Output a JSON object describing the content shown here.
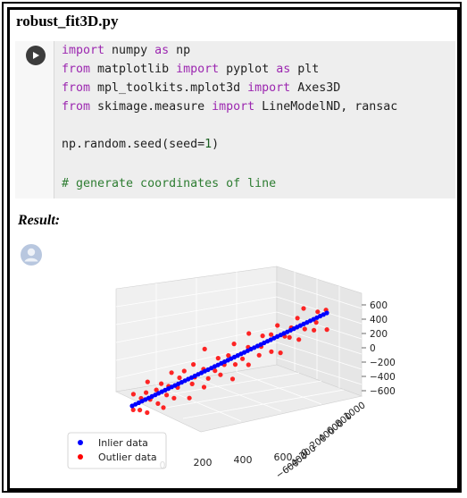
{
  "file_title": "robust_fit3D.py",
  "code": {
    "line1": {
      "kw1": "import",
      "mid": " numpy ",
      "kw2": "as",
      "rest": " np"
    },
    "line2": {
      "kw1": "from",
      "mid": " matplotlib ",
      "kw2": "import",
      "rest": " pyplot ",
      "kw3": "as",
      "rest2": " plt"
    },
    "line3": {
      "kw1": "from",
      "mid": " mpl_toolkits.mplot3d ",
      "kw2": "import",
      "rest": " Axes3D"
    },
    "line4": {
      "kw1": "from",
      "mid": " skimage.measure ",
      "kw2": "import",
      "rest": " LineModelND, ransac"
    },
    "line5": {
      "pre": "np.random.seed(seed=",
      "num": "1",
      "post": ")"
    },
    "line6": {
      "comment": "# generate coordinates of line"
    }
  },
  "result_label": "Result:",
  "chart_data": {
    "type": "scatter",
    "projection": "3d",
    "z_ticks": [
      "600",
      "400",
      "200",
      "0",
      "−200",
      "−400",
      "−600"
    ],
    "y_ticks": [
      "1000",
      "800",
      "600",
      "400",
      "200",
      "0",
      "−200",
      "−400",
      "−600"
    ],
    "x_ticks": [
      "0",
      "200",
      "400",
      "600"
    ],
    "legend": [
      "Inlier data",
      "Outlier data"
    ],
    "colors": {
      "inlier": "#0000ff",
      "outlier": "#ff0000"
    },
    "inliers": {
      "t_start": 0.0,
      "t_end": 1.0,
      "count": 60
    },
    "outliers_t": [
      0.0,
      0.02,
      0.03,
      0.05,
      0.06,
      0.08,
      0.09,
      0.1,
      0.12,
      0.13,
      0.14,
      0.16,
      0.17,
      0.19,
      0.2,
      0.22,
      0.23,
      0.25,
      0.27,
      0.28,
      0.3,
      0.32,
      0.33,
      0.35,
      0.37,
      0.38,
      0.4,
      0.42,
      0.44,
      0.45,
      0.47,
      0.49,
      0.5,
      0.52,
      0.54,
      0.56,
      0.58,
      0.6,
      0.62,
      0.64,
      0.66,
      0.68,
      0.7,
      0.72,
      0.74,
      0.76,
      0.78,
      0.8,
      0.82,
      0.84,
      0.86,
      0.88,
      0.9,
      0.92,
      0.94,
      0.96,
      0.98,
      1.0
    ],
    "outliers_dev": [
      8,
      -20,
      14,
      -6,
      25,
      -12,
      4,
      -30,
      18,
      -8,
      30,
      -15,
      10,
      -4,
      22,
      -26,
      6,
      -10,
      35,
      -18,
      12,
      2,
      -22,
      28,
      -5,
      16,
      -40,
      8,
      20,
      -12,
      5,
      38,
      -8,
      14,
      -24,
      10,
      26,
      -6,
      -30,
      18,
      4,
      -14,
      22,
      -9,
      32,
      -20,
      6,
      12,
      -4,
      24,
      -16,
      10,
      -28,
      20,
      8,
      -10,
      30,
      -6
    ]
  }
}
